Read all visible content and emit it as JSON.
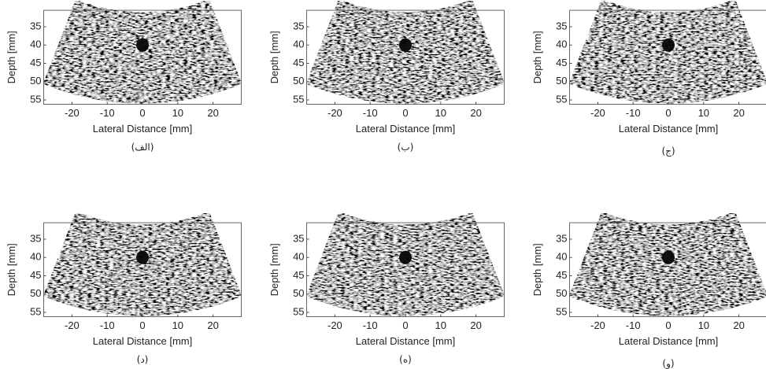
{
  "figure": {
    "panels": [
      {
        "caption": "(الف)",
        "ylabel": "Depth [mm]",
        "xlabel": "Lateral Distance [mm]",
        "xticks": [
          -20,
          -10,
          0,
          10,
          20
        ],
        "yticks": [
          35,
          40,
          45,
          50,
          55
        ]
      },
      {
        "caption": "(ب)",
        "ylabel": "Depth [mm]",
        "xlabel": "Lateral Distance [mm]",
        "xticks": [
          -20,
          -10,
          0,
          10,
          20
        ],
        "yticks": [
          35,
          40,
          45,
          50,
          55
        ]
      },
      {
        "caption": "(ج)",
        "ylabel": "Depth [mm]",
        "xlabel": "Lateral Distance [mm]",
        "xticks": [
          -20,
          -10,
          0,
          10,
          20
        ],
        "yticks": [
          35,
          40,
          45,
          50,
          55
        ]
      },
      {
        "caption": "(د)",
        "ylabel": "Depth [mm]",
        "xlabel": "Lateral Distance [mm]",
        "xticks": [
          -20,
          -10,
          0,
          10,
          20
        ],
        "yticks": [
          35,
          40,
          45,
          50,
          55
        ]
      },
      {
        "caption": "(ه)",
        "ylabel": "Depth [mm]",
        "xlabel": "Lateral Distance [mm]",
        "xticks": [
          -20,
          -10,
          0,
          10,
          20
        ],
        "yticks": [
          35,
          40,
          45,
          50,
          55
        ]
      },
      {
        "caption": "(و)",
        "ylabel": "Depth [mm]",
        "xlabel": "Lateral Distance [mm]",
        "xticks": [
          -20,
          -10,
          0,
          10,
          20
        ],
        "yticks": [
          35,
          40,
          45,
          50,
          55
        ]
      }
    ]
  }
}
